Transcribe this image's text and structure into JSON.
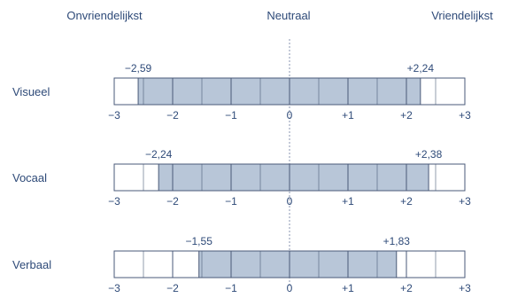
{
  "chart_data": {
    "type": "bar",
    "title": "",
    "scale_labels": {
      "left": "Onvriendelijkst",
      "center": "Neutraal",
      "right": "Vriendelijkst"
    },
    "xlim": [
      -3,
      3
    ],
    "grid": true,
    "ticks": [
      "−3",
      "−2",
      "−1",
      "0",
      "+1",
      "+2",
      "+3"
    ],
    "tick_values": [
      -3,
      -2,
      -1,
      0,
      1,
      2,
      3
    ],
    "series": [
      {
        "name": "Visueel",
        "low": -2.59,
        "high": 2.24,
        "low_label": "−2,59",
        "high_label": "+2,24"
      },
      {
        "name": "Vocaal",
        "low": -2.24,
        "high": 2.38,
        "low_label": "−2,24",
        "high_label": "+2,38"
      },
      {
        "name": "Verbaal",
        "low": -1.55,
        "high": 1.83,
        "low_label": "−1,55",
        "high_label": "+1,83"
      }
    ],
    "colors": {
      "fill": "#b8c6d8",
      "stroke": "#4a5a78",
      "text": "#2e4a78",
      "zero_line": "#8a96b0"
    }
  }
}
